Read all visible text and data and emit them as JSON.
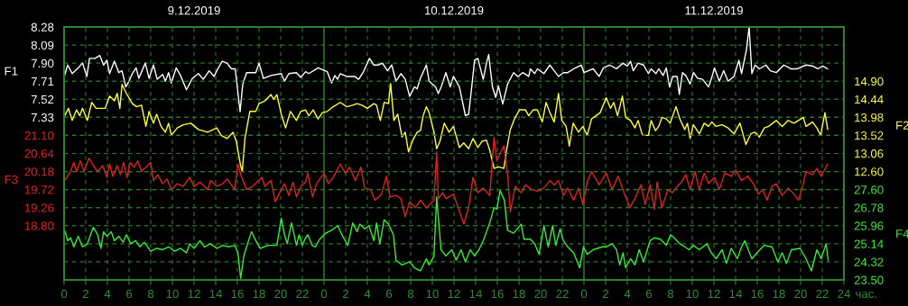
{
  "chart_data": [
    {
      "type": "line",
      "xlabel": "час.",
      "ylabel": "F1",
      "y2label": "F2",
      "grid": true,
      "line_style": "solid",
      "marker": "none",
      "xlim": [
        "2019-12-09T00:00",
        "2019-12-12T00:00"
      ],
      "xticks": [
        {
          "value": "2019-12-09T00:00",
          "label": "0"
        },
        {
          "value": "2019-12-09T02:00",
          "label": "2"
        },
        {
          "value": "2019-12-09T04:00",
          "label": "4"
        },
        {
          "value": "2019-12-09T06:00",
          "label": "6"
        },
        {
          "value": "2019-12-09T08:00",
          "label": "8"
        },
        {
          "value": "2019-12-09T10:00",
          "label": "10"
        },
        {
          "value": "2019-12-09T12:00",
          "label": "12"
        },
        {
          "value": "2019-12-09T14:00",
          "label": "14"
        },
        {
          "value": "2019-12-09T16:00",
          "label": "16"
        },
        {
          "value": "2019-12-09T18:00",
          "label": "18"
        },
        {
          "value": "2019-12-09T20:00",
          "label": "20"
        },
        {
          "value": "2019-12-09T22:00",
          "label": "22"
        },
        {
          "value": "2019-12-10T00:00",
          "label": "0"
        },
        {
          "value": "2019-12-10T02:00",
          "label": "2"
        },
        {
          "value": "2019-12-10T04:00",
          "label": "4"
        },
        {
          "value": "2019-12-10T06:00",
          "label": "6"
        },
        {
          "value": "2019-12-10T08:00",
          "label": "8"
        },
        {
          "value": "2019-12-10T10:00",
          "label": "10"
        },
        {
          "value": "2019-12-10T12:00",
          "label": "12"
        },
        {
          "value": "2019-12-10T14:00",
          "label": "14"
        },
        {
          "value": "2019-12-10T16:00",
          "label": "16"
        },
        {
          "value": "2019-12-10T18:00",
          "label": "18"
        },
        {
          "value": "2019-12-10T20:00",
          "label": "20"
        },
        {
          "value": "2019-12-10T22:00",
          "label": "22"
        },
        {
          "value": "2019-12-11T00:00",
          "label": "0"
        },
        {
          "value": "2019-12-11T02:00",
          "label": "2"
        },
        {
          "value": "2019-12-11T04:00",
          "label": "4"
        },
        {
          "value": "2019-12-11T06:00",
          "label": "6"
        },
        {
          "value": "2019-12-11T08:00",
          "label": "8"
        },
        {
          "value": "2019-12-11T10:00",
          "label": "10"
        },
        {
          "value": "2019-12-11T12:00",
          "label": "12"
        },
        {
          "value": "2019-12-11T14:00",
          "label": "14"
        },
        {
          "value": "2019-12-11T16:00",
          "label": "16"
        },
        {
          "value": "2019-12-11T18:00",
          "label": "18"
        },
        {
          "value": "2019-12-11T20:00",
          "label": "20"
        },
        {
          "value": "2019-12-11T22:00",
          "label": "22"
        },
        {
          "value": "2019-12-12T00:00",
          "label": "24"
        }
      ],
      "x2lim": [
        "2019-12-09T00:00",
        "2019-12-12T00:00"
      ],
      "x2ticks": [
        {
          "value": "2019-12-09T12:00",
          "label": "9.12.2019"
        },
        {
          "value": "2019-12-10T12:00",
          "label": "10.12.2019"
        },
        {
          "value": "2019-12-11T12:00",
          "label": "11.12.2019"
        }
      ],
      "ylim": [
        5.62,
        8.28
      ],
      "yticks": [
        8.28,
        8.09,
        {
          "value": 7.9,
          "label": "7.90"
        },
        7.71,
        7.52,
        7.33
      ],
      "y2lim": [
        9.84,
        16.28
      ],
      "y2ticks": [
        {
          "value": 14.9,
          "label": "14.90"
        },
        14.44,
        13.98,
        13.52,
        13.06,
        {
          "value": 12.6,
          "label": "12.60"
        }
      ],
      "series": [
        {
          "axis": "y",
          "color": "#ffffff",
          "x": [
            "2019-12-09T00:03",
            "2019-12-09T00:20",
            "2019-12-09T00:45",
            "2019-12-09T01:18",
            "2019-12-09T01:42",
            "2019-12-09T02:06",
            "2019-12-09T02:21",
            "2019-12-09T02:51",
            "2019-12-09T03:18",
            "2019-12-09T03:39",
            "2019-12-09T03:57",
            "2019-12-09T04:12",
            "2019-12-09T04:39",
            "2019-12-09T05:03",
            "2019-12-09T05:21",
            "2019-12-09T05:42",
            "2019-12-09T06:00",
            "2019-12-09T06:18",
            "2019-12-09T06:39",
            "2019-12-09T06:54",
            "2019-12-09T07:30",
            "2019-12-09T07:51",
            "2019-12-09T08:15",
            "2019-12-09T08:36",
            "2019-12-09T09:06",
            "2019-12-09T09:21",
            "2019-12-09T09:39",
            "2019-12-09T09:54",
            "2019-12-09T10:21",
            "2019-12-09T10:45",
            "2019-12-09T11:18",
            "2019-12-09T11:51",
            "2019-12-09T12:24",
            "2019-12-09T12:51",
            "2019-12-09T13:24",
            "2019-12-09T13:51",
            "2019-12-09T14:06",
            "2019-12-09T14:36",
            "2019-12-09T15:03",
            "2019-12-09T15:27",
            "2019-12-09T15:48",
            "2019-12-09T16:15",
            "2019-12-09T16:30",
            "2019-12-09T16:51",
            "2019-12-09T17:42",
            "2019-12-09T18:00",
            "2019-12-09T18:24",
            "2019-12-09T19:06",
            "2019-12-09T20:03",
            "2019-12-09T20:21",
            "2019-12-09T20:45",
            "2019-12-09T21:27",
            "2019-12-09T21:51",
            "2019-12-09T22:18",
            "2019-12-09T22:36",
            "2019-12-09T23:27",
            "2019-12-10T00:18",
            "2019-12-10T00:42",
            "2019-12-10T01:00",
            "2019-12-10T01:15",
            "2019-12-10T01:30",
            "2019-12-10T02:06",
            "2019-12-10T02:48",
            "2019-12-10T03:12",
            "2019-12-10T03:36",
            "2019-12-10T04:12",
            "2019-12-10T04:36",
            "2019-12-10T05:00",
            "2019-12-10T05:24",
            "2019-12-10T05:51",
            "2019-12-10T06:15",
            "2019-12-10T06:39",
            "2019-12-10T07:06",
            "2019-12-10T07:30",
            "2019-12-10T07:54",
            "2019-12-10T08:21",
            "2019-12-10T08:36",
            "2019-12-10T08:54",
            "2019-12-10T09:27",
            "2019-12-10T09:42",
            "2019-12-10T10:18",
            "2019-12-10T10:33",
            "2019-12-10T10:51",
            "2019-12-10T11:15",
            "2019-12-10T11:39",
            "2019-12-10T11:57",
            "2019-12-10T12:30",
            "2019-12-10T13:03",
            "2019-12-10T13:21",
            "2019-12-10T13:36",
            "2019-12-10T13:54",
            "2019-12-10T14:12",
            "2019-12-10T14:42",
            "2019-12-10T15:00",
            "2019-12-10T15:12",
            "2019-12-10T15:33",
            "2019-12-10T15:51",
            "2019-12-10T16:06",
            "2019-12-10T16:30",
            "2019-12-10T16:57",
            "2019-12-10T17:30",
            "2019-12-10T17:54",
            "2019-12-10T18:21",
            "2019-12-10T18:54",
            "2019-12-10T19:03",
            "2019-12-10T19:27",
            "2019-12-10T19:42",
            "2019-12-10T20:18",
            "2019-12-10T20:51",
            "2019-12-10T21:15",
            "2019-12-10T21:39",
            "2019-12-10T22:06",
            "2019-12-10T22:30",
            "2019-12-10T23:03",
            "2019-12-10T23:45",
            "2019-12-11T00:00",
            "2019-12-11T00:51",
            "2019-12-11T01:24",
            "2019-12-11T01:48",
            "2019-12-11T02:21",
            "2019-12-11T03:00",
            "2019-12-11T03:36",
            "2019-12-11T04:00",
            "2019-12-11T04:18",
            "2019-12-11T04:33",
            "2019-12-11T05:00",
            "2019-12-11T05:30",
            "2019-12-11T05:57",
            "2019-12-11T06:12",
            "2019-12-11T06:39",
            "2019-12-11T06:54",
            "2019-12-11T07:18",
            "2019-12-11T07:36",
            "2019-12-11T07:54",
            "2019-12-11T08:12",
            "2019-12-11T08:36",
            "2019-12-11T08:48",
            "2019-12-11T09:06",
            "2019-12-11T09:24",
            "2019-12-11T09:48",
            "2019-12-11T10:06",
            "2019-12-11T10:30",
            "2019-12-11T10:57",
            "2019-12-11T11:30",
            "2019-12-11T11:45",
            "2019-12-11T12:03",
            "2019-12-11T12:30",
            "2019-12-11T12:54",
            "2019-12-11T13:18",
            "2019-12-11T13:51",
            "2019-12-11T14:18",
            "2019-12-11T14:33",
            "2019-12-11T15:00",
            "2019-12-11T15:15",
            "2019-12-11T15:30",
            "2019-12-11T15:48",
            "2019-12-11T16:12",
            "2019-12-11T16:48",
            "2019-12-11T17:12",
            "2019-12-11T17:45",
            "2019-12-11T18:27",
            "2019-12-11T19:06",
            "2019-12-11T19:42",
            "2019-12-11T20:30",
            "2019-12-11T21:06",
            "2019-12-11T21:36",
            "2019-12-11T22:03",
            "2019-12-11T22:30"
          ],
          "values": [
            7.77,
            7.88,
            7.79,
            7.85,
            7.9,
            7.76,
            7.95,
            7.95,
            7.98,
            7.88,
            7.93,
            7.79,
            7.92,
            7.8,
            7.82,
            7.65,
            7.71,
            7.79,
            7.85,
            7.74,
            7.9,
            7.74,
            7.88,
            7.73,
            7.78,
            7.71,
            7.8,
            7.69,
            7.85,
            7.77,
            7.62,
            7.74,
            7.79,
            7.73,
            7.82,
            7.76,
            7.82,
            7.92,
            7.9,
            7.84,
            7.84,
            7.39,
            7.68,
            7.8,
            7.8,
            7.9,
            7.74,
            7.77,
            7.79,
            7.71,
            7.79,
            7.8,
            7.75,
            7.81,
            7.79,
            7.85,
            7.81,
            7.69,
            7.77,
            7.73,
            7.79,
            7.76,
            7.76,
            7.73,
            7.8,
            7.95,
            7.88,
            7.88,
            7.9,
            7.82,
            7.88,
            7.71,
            7.79,
            7.73,
            7.55,
            7.65,
            7.63,
            7.74,
            7.88,
            7.71,
            7.65,
            7.58,
            7.66,
            7.8,
            7.65,
            7.76,
            7.65,
            7.35,
            7.36,
            7.61,
            7.93,
            7.95,
            7.73,
            7.9,
            7.99,
            7.65,
            7.54,
            7.66,
            7.47,
            7.68,
            7.8,
            7.76,
            7.8,
            7.76,
            7.84,
            7.79,
            7.84,
            7.79,
            7.88,
            7.82,
            7.76,
            7.8,
            7.8,
            7.84,
            7.88,
            7.8,
            7.84,
            7.76,
            7.85,
            7.88,
            7.84,
            7.9,
            7.87,
            7.92,
            7.82,
            7.9,
            7.88,
            7.79,
            7.84,
            7.79,
            7.84,
            7.77,
            7.85,
            7.65,
            7.76,
            7.76,
            7.57,
            7.8,
            7.77,
            7.68,
            7.8,
            7.74,
            7.73,
            7.65,
            7.73,
            7.85,
            7.71,
            7.82,
            7.71,
            7.76,
            7.93,
            7.79,
            8.04,
            8.28,
            7.79,
            7.88,
            7.84,
            7.88,
            7.82,
            7.8,
            7.88,
            7.84,
            7.84,
            7.88,
            7.87,
            7.84,
            7.87,
            7.84
          ]
        },
        {
          "axis": "y2",
          "color": "#ffff33",
          "x": [
            "2019-12-09T00:03",
            "2019-12-09T00:24",
            "2019-12-09T00:45",
            "2019-12-09T01:09",
            "2019-12-09T01:27",
            "2019-12-09T01:42",
            "2019-12-09T02:09",
            "2019-12-09T02:33",
            "2019-12-09T02:57",
            "2019-12-09T03:48",
            "2019-12-09T04:12",
            "2019-12-09T04:39",
            "2019-12-09T04:54",
            "2019-12-09T05:09",
            "2019-12-09T05:21",
            "2019-12-09T05:45",
            "2019-12-09T06:18",
            "2019-12-09T06:42",
            "2019-12-09T07:09",
            "2019-12-09T07:33",
            "2019-12-09T07:51",
            "2019-12-09T08:15",
            "2019-12-09T08:33",
            "2019-12-09T08:57",
            "2019-12-09T09:21",
            "2019-12-09T09:39",
            "2019-12-09T09:54",
            "2019-12-09T10:27",
            "2019-12-09T11:00",
            "2019-12-09T11:42",
            "2019-12-09T12:24",
            "2019-12-09T13:15",
            "2019-12-09T14:06",
            "2019-12-09T14:30",
            "2019-12-09T15:03",
            "2019-12-09T15:36",
            "2019-12-09T15:54",
            "2019-12-09T16:18",
            "2019-12-09T16:27",
            "2019-12-09T16:42",
            "2019-12-09T17:09",
            "2019-12-09T17:42",
            "2019-12-09T18:00",
            "2019-12-09T18:33",
            "2019-12-09T19:06",
            "2019-12-09T19:21",
            "2019-12-09T19:39",
            "2019-12-09T20:03",
            "2019-12-09T20:27",
            "2019-12-09T20:54",
            "2019-12-09T21:27",
            "2019-12-09T21:51",
            "2019-12-09T22:18",
            "2019-12-09T22:36",
            "2019-12-09T23:00",
            "2019-12-09T23:27",
            "2019-12-09T23:51",
            "2019-12-10T00:18",
            "2019-12-10T00:51",
            "2019-12-10T01:30",
            "2019-12-10T02:06",
            "2019-12-10T02:39",
            "2019-12-10T03:03",
            "2019-12-10T03:30",
            "2019-12-10T04:00",
            "2019-12-10T04:36",
            "2019-12-10T04:51",
            "2019-12-10T05:12",
            "2019-12-10T05:33",
            "2019-12-10T05:57",
            "2019-12-10T06:09",
            "2019-12-10T06:27",
            "2019-12-10T06:48",
            "2019-12-10T07:12",
            "2019-12-10T07:30",
            "2019-12-10T07:48",
            "2019-12-10T08:12",
            "2019-12-10T08:36",
            "2019-12-10T08:54",
            "2019-12-10T09:09",
            "2019-12-10T09:27",
            "2019-12-10T09:42",
            "2019-12-10T10:09",
            "2019-12-10T10:24",
            "2019-12-10T10:42",
            "2019-12-10T11:06",
            "2019-12-10T11:33",
            "2019-12-10T11:57",
            "2019-12-10T12:30",
            "2019-12-10T12:54",
            "2019-12-10T13:21",
            "2019-12-10T13:45",
            "2019-12-10T14:12",
            "2019-12-10T14:36",
            "2019-12-10T15:00",
            "2019-12-10T15:18",
            "2019-12-10T15:42",
            "2019-12-10T16:06",
            "2019-12-10T16:36",
            "2019-12-10T16:48",
            "2019-12-10T17:12",
            "2019-12-10T17:39",
            "2019-12-10T18:03",
            "2019-12-10T18:36",
            "2019-12-10T18:54",
            "2019-12-10T19:18",
            "2019-12-10T19:42",
            "2019-12-10T20:09",
            "2019-12-10T20:30",
            "2019-12-10T20:51",
            "2019-12-10T21:15",
            "2019-12-10T21:39",
            "2019-12-10T21:57",
            "2019-12-10T22:21",
            "2019-12-10T22:39",
            "2019-12-10T23:00",
            "2019-12-10T23:30",
            "2019-12-10T23:54",
            "2019-12-11T00:18",
            "2019-12-11T00:42",
            "2019-12-11T01:06",
            "2019-12-11T01:30",
            "2019-12-11T02:03",
            "2019-12-11T02:27",
            "2019-12-11T02:45",
            "2019-12-11T03:06",
            "2019-12-11T03:33",
            "2019-12-11T03:51",
            "2019-12-11T04:18",
            "2019-12-11T04:42",
            "2019-12-11T05:00",
            "2019-12-11T05:24",
            "2019-12-11T05:57",
            "2019-12-11T06:12",
            "2019-12-11T06:36",
            "2019-12-11T06:54",
            "2019-12-11T07:12",
            "2019-12-11T07:36",
            "2019-12-11T07:57",
            "2019-12-11T08:18",
            "2019-12-11T08:30",
            "2019-12-11T08:51",
            "2019-12-11T09:18",
            "2019-12-11T09:33",
            "2019-12-11T09:48",
            "2019-12-11T10:06",
            "2019-12-11T10:39",
            "2019-12-11T11:06",
            "2019-12-11T11:30",
            "2019-12-11T11:48",
            "2019-12-11T12:12",
            "2019-12-11T12:45",
            "2019-12-11T13:18",
            "2019-12-11T13:51",
            "2019-12-11T14:24",
            "2019-12-11T14:57",
            "2019-12-11T15:24",
            "2019-12-11T15:48",
            "2019-12-11T16:12",
            "2019-12-11T16:39",
            "2019-12-11T17:03",
            "2019-12-11T17:45",
            "2019-12-11T18:18",
            "2019-12-11T18:51",
            "2019-12-11T19:24",
            "2019-12-11T20:15",
            "2019-12-11T20:30",
            "2019-12-11T21:06",
            "2019-12-11T21:30",
            "2019-12-11T21:51",
            "2019-12-11T22:15",
            "2019-12-11T22:30"
          ],
          "values": [
            14.02,
            14.21,
            13.9,
            14.17,
            14.02,
            14.21,
            13.9,
            14.36,
            14.21,
            14.21,
            14.52,
            14.4,
            14.59,
            14.21,
            14.82,
            14.59,
            14.33,
            14.25,
            14.29,
            13.75,
            14.13,
            13.83,
            14.06,
            13.75,
            13.6,
            13.83,
            13.52,
            13.71,
            13.79,
            13.83,
            13.67,
            13.6,
            13.71,
            13.52,
            13.44,
            13.6,
            13.37,
            12.75,
            12.6,
            13.44,
            14.13,
            14.13,
            14.33,
            14.4,
            14.56,
            14.44,
            14.56,
            14.06,
            13.71,
            14.13,
            13.9,
            14.13,
            14.17,
            14.02,
            14.17,
            13.94,
            14.1,
            14.13,
            14.25,
            14.36,
            14.25,
            14.29,
            14.33,
            14.29,
            14.21,
            14.33,
            14.29,
            13.9,
            14.36,
            14.33,
            14.84,
            13.9,
            14.06,
            13.48,
            13.6,
            13.1,
            13.4,
            13.6,
            13.64,
            14.02,
            14.25,
            14.1,
            13.6,
            13.18,
            13.37,
            13.83,
            13.6,
            13.75,
            13.21,
            13.33,
            13.18,
            13.44,
            13.21,
            13.37,
            13.4,
            13.14,
            12.68,
            12.72,
            12.68,
            13.06,
            13.67,
            13.98,
            14.17,
            14.17,
            14.02,
            14.17,
            14.17,
            13.86,
            14.36,
            14.1,
            13.86,
            14.59,
            13.9,
            13.75,
            13.25,
            13.83,
            13.6,
            13.75,
            13.52,
            13.94,
            14.02,
            14.1,
            14.48,
            14.21,
            14.36,
            14.02,
            14.52,
            13.98,
            13.9,
            13.71,
            13.9,
            13.52,
            13.52,
            13.9,
            13.64,
            13.75,
            13.98,
            13.94,
            13.83,
            14.1,
            14.25,
            13.94,
            13.67,
            13.83,
            13.44,
            13.79,
            13.56,
            13.83,
            13.75,
            13.86,
            13.75,
            13.79,
            13.71,
            13.56,
            13.83,
            13.29,
            13.56,
            13.6,
            13.48,
            13.71,
            13.75,
            13.9,
            13.75,
            13.9,
            13.83,
            13.98,
            13.75,
            13.86,
            13.71,
            13.52,
            14.1,
            13.67
          ]
        }
      ]
    },
    {
      "type": "line",
      "ylabel": "F3",
      "y2label": "F4",
      "grid": "y",
      "line_style": "solid",
      "marker": "none",
      "tick_labels": "y",
      "xlim": [
        "2019-12-09T00:00",
        "2019-12-12T00:00"
      ],
      "ylim": [
        17.42,
        23.86
      ],
      "yticks": [
        {
          "value": 21.1,
          "label": "21.10"
        },
        20.64,
        20.18,
        19.72,
        19.26,
        {
          "value": 18.8,
          "label": "18.80"
        }
      ],
      "y2lim": [
        23.5,
        34.98
      ],
      "y2ticks": [
        {
          "value": 27.6,
          "label": "27.60"
        },
        26.78,
        25.96,
        25.14,
        24.32,
        {
          "value": 23.5,
          "label": "23.50"
        }
      ],
      "series": [
        {
          "axis": "y",
          "color": "#e02020",
          "x": [
            "2019-12-09T00:03",
            "2019-12-09T00:36",
            "2019-12-09T00:54",
            "2019-12-09T01:09",
            "2019-12-09T01:30",
            "2019-12-09T01:51",
            "2019-12-09T02:18",
            "2019-12-09T02:42",
            "2019-12-09T03:06",
            "2019-12-09T03:33",
            "2019-12-09T03:57",
            "2019-12-09T04:12",
            "2019-12-09T04:30",
            "2019-12-09T04:54",
            "2019-12-09T05:12",
            "2019-12-09T05:30",
            "2019-12-09T05:48",
            "2019-12-09T06:06",
            "2019-12-09T06:27",
            "2019-12-09T06:48",
            "2019-12-09T07:09",
            "2019-12-09T08:00",
            "2019-12-09T08:15",
            "2019-12-09T08:39",
            "2019-12-09T09:06",
            "2019-12-09T09:30",
            "2019-12-09T09:54",
            "2019-12-09T10:27",
            "2019-12-09T11:00",
            "2019-12-09T11:36",
            "2019-12-09T12:00",
            "2019-12-09T12:33",
            "2019-12-09T13:15",
            "2019-12-09T13:33",
            "2019-12-09T14:06",
            "2019-12-09T14:39",
            "2019-12-09T15:03",
            "2019-12-09T15:45",
            "2019-12-09T16:03",
            "2019-12-09T16:18",
            "2019-12-09T16:51",
            "2019-12-09T17:24",
            "2019-12-09T18:15",
            "2019-12-09T18:33",
            "2019-12-09T19:06",
            "2019-12-09T19:30",
            "2019-12-09T19:54",
            "2019-12-09T20:21",
            "2019-12-09T20:45",
            "2019-12-09T21:09",
            "2019-12-09T21:27",
            "2019-12-09T21:51",
            "2019-12-09T22:18",
            "2019-12-09T22:30",
            "2019-12-09T22:57",
            "2019-12-09T23:18",
            "2019-12-10T00:00",
            "2019-12-10T00:24",
            "2019-12-10T00:51",
            "2019-12-10T01:30",
            "2019-12-10T01:57",
            "2019-12-10T02:21",
            "2019-12-10T02:54",
            "2019-12-10T03:24",
            "2019-12-10T03:45",
            "2019-12-10T04:18",
            "2019-12-10T04:42",
            "2019-12-10T05:18",
            "2019-12-10T05:45",
            "2019-12-10T06:06",
            "2019-12-10T06:39",
            "2019-12-10T07:06",
            "2019-12-10T07:30",
            "2019-12-10T07:54",
            "2019-12-10T08:27",
            "2019-12-10T08:54",
            "2019-12-10T09:27",
            "2019-12-10T10:09",
            "2019-12-10T10:24",
            "2019-12-10T10:33",
            "2019-12-10T10:57",
            "2019-12-10T11:15",
            "2019-12-10T11:57",
            "2019-12-10T12:30",
            "2019-12-10T12:54",
            "2019-12-10T13:21",
            "2019-12-10T13:45",
            "2019-12-10T14:12",
            "2019-12-10T14:42",
            "2019-12-10T15:18",
            "2019-12-10T15:42",
            "2019-12-10T15:57",
            "2019-12-10T16:15",
            "2019-12-10T16:36",
            "2019-12-10T16:57",
            "2019-12-10T17:12",
            "2019-12-10T17:39",
            "2019-12-10T18:12",
            "2019-12-10T18:36",
            "2019-12-10T19:09",
            "2019-12-10T19:42",
            "2019-12-10T20:18",
            "2019-12-10T20:51",
            "2019-12-10T21:15",
            "2019-12-10T21:39",
            "2019-12-10T22:06",
            "2019-12-10T22:30",
            "2019-12-10T23:03",
            "2019-12-10T23:30",
            "2019-12-10T23:54",
            "2019-12-11T00:18",
            "2019-12-11T00:42",
            "2019-12-11T01:24",
            "2019-12-11T02:03",
            "2019-12-11T02:36",
            "2019-12-11T03:09",
            "2019-12-11T03:42",
            "2019-12-11T04:15",
            "2019-12-11T04:42",
            "2019-12-11T05:15",
            "2019-12-11T05:39",
            "2019-12-11T06:06",
            "2019-12-11T06:30",
            "2019-12-11T06:45",
            "2019-12-11T07:12",
            "2019-12-11T07:45",
            "2019-12-11T08:09",
            "2019-12-11T08:36",
            "2019-12-11T09:00",
            "2019-12-11T09:24",
            "2019-12-11T09:48",
            "2019-12-11T10:15",
            "2019-12-11T10:39",
            "2019-12-11T11:06",
            "2019-12-11T11:30",
            "2019-12-11T12:03",
            "2019-12-11T12:30",
            "2019-12-11T13:00",
            "2019-12-11T13:36",
            "2019-12-11T14:00",
            "2019-12-11T14:33",
            "2019-12-11T15:06",
            "2019-12-11T15:39",
            "2019-12-11T16:06",
            "2019-12-11T16:30",
            "2019-12-11T16:54",
            "2019-12-11T17:21",
            "2019-12-11T17:45",
            "2019-12-11T18:18",
            "2019-12-11T18:51",
            "2019-12-11T19:24",
            "2019-12-11T19:48",
            "2019-12-11T20:15",
            "2019-12-11T20:30",
            "2019-12-11T21:06",
            "2019-12-11T21:30",
            "2019-12-11T21:54",
            "2019-12-11T22:30"
          ],
          "values": [
            19.95,
            20.18,
            20.41,
            20.18,
            20.45,
            20.18,
            20.52,
            20.33,
            20.18,
            20.33,
            20.03,
            20.37,
            20.06,
            20.33,
            20.1,
            20.41,
            20.03,
            20.41,
            20.29,
            20.45,
            20.18,
            20.41,
            19.95,
            20.1,
            19.87,
            19.99,
            19.72,
            19.87,
            19.8,
            20.03,
            19.8,
            19.91,
            19.72,
            19.95,
            19.8,
            19.87,
            19.99,
            19.72,
            20.37,
            20.1,
            19.72,
            19.8,
            20.03,
            19.8,
            19.95,
            19.41,
            19.64,
            19.87,
            19.57,
            19.91,
            19.53,
            19.8,
            19.91,
            20.14,
            19.53,
            19.87,
            20.14,
            19.87,
            20.03,
            20.37,
            20.14,
            20.29,
            19.95,
            20.29,
            19.76,
            19.72,
            19.45,
            19.6,
            20.06,
            19.53,
            19.57,
            19.49,
            19.03,
            19.41,
            19.26,
            19.45,
            19.26,
            19.45,
            20.68,
            19.49,
            19.64,
            19.49,
            19.6,
            19.18,
            18.84,
            19.26,
            20.03,
            19.64,
            19.76,
            19.57,
            21.06,
            20.45,
            20.64,
            20.83,
            20.1,
            19.15,
            19.8,
            19.64,
            19.84,
            19.72,
            19.68,
            19.76,
            19.95,
            19.84,
            19.95,
            19.57,
            19.76,
            19.45,
            19.76,
            19.34,
            19.91,
            20.18,
            19.84,
            20.14,
            19.72,
            20.06,
            19.64,
            19.26,
            19.49,
            19.84,
            19.34,
            19.84,
            19.22,
            19.91,
            19.26,
            19.72,
            19.64,
            19.8,
            19.91,
            20.1,
            19.72,
            20.18,
            19.72,
            20.14,
            19.87,
            20.03,
            19.72,
            20.14,
            20.06,
            20.22,
            19.95,
            20.06,
            19.87,
            19.6,
            19.72,
            19.45,
            19.8,
            19.87,
            19.57,
            19.76,
            19.6,
            19.45,
            19.87,
            20.18,
            20.1,
            20.26,
            20.06,
            20.37
          ]
        },
        {
          "axis": "y2",
          "color": "#33ee33",
          "x": [
            "2019-12-09T00:03",
            "2019-12-09T00:20",
            "2019-12-09T00:36",
            "2019-12-09T00:54",
            "2019-12-09T01:18",
            "2019-12-09T01:42",
            "2019-12-09T02:09",
            "2019-12-09T02:42",
            "2019-12-09T03:06",
            "2019-12-09T03:24",
            "2019-12-09T03:39",
            "2019-12-09T03:57",
            "2019-12-09T04:21",
            "2019-12-09T04:39",
            "2019-12-09T05:03",
            "2019-12-09T05:27",
            "2019-12-09T05:45",
            "2019-12-09T06:09",
            "2019-12-09T06:36",
            "2019-12-09T07:00",
            "2019-12-09T07:24",
            "2019-12-09T08:00",
            "2019-12-09T08:33",
            "2019-12-09T09:06",
            "2019-12-09T09:39",
            "2019-12-09T10:12",
            "2019-12-09T10:45",
            "2019-12-09T11:18",
            "2019-12-09T11:36",
            "2019-12-09T12:00",
            "2019-12-09T12:33",
            "2019-12-09T12:57",
            "2019-12-09T13:30",
            "2019-12-09T14:06",
            "2019-12-09T14:39",
            "2019-12-09T15:12",
            "2019-12-09T15:45",
            "2019-12-09T16:03",
            "2019-12-09T16:18",
            "2019-12-09T16:36",
            "2019-12-09T16:51",
            "2019-12-09T17:18",
            "2019-12-09T17:42",
            "2019-12-09T18:06",
            "2019-12-09T18:48",
            "2019-12-09T19:39",
            "2019-12-09T20:03",
            "2019-12-09T20:21",
            "2019-12-09T20:36",
            "2019-12-09T21:00",
            "2019-12-09T21:27",
            "2019-12-09T21:42",
            "2019-12-09T22:00",
            "2019-12-09T22:18",
            "2019-12-09T22:30",
            "2019-12-09T22:54",
            "2019-12-09T23:12",
            "2019-12-09T23:36",
            "2019-12-10T00:09",
            "2019-12-10T00:42",
            "2019-12-10T01:15",
            "2019-12-10T01:48",
            "2019-12-10T02:12",
            "2019-12-10T02:39",
            "2019-12-10T03:03",
            "2019-12-10T03:18",
            "2019-12-10T03:45",
            "2019-12-10T04:09",
            "2019-12-10T04:36",
            "2019-12-10T04:51",
            "2019-12-10T05:09",
            "2019-12-10T05:33",
            "2019-12-10T05:57",
            "2019-12-10T06:24",
            "2019-12-10T06:39",
            "2019-12-10T07:12",
            "2019-12-10T07:54",
            "2019-12-10T08:21",
            "2019-12-10T08:54",
            "2019-12-10T09:27",
            "2019-12-10T09:42",
            "2019-12-10T10:09",
            "2019-12-10T10:24",
            "2019-12-10T10:48",
            "2019-12-10T11:15",
            "2019-12-10T11:48",
            "2019-12-10T12:12",
            "2019-12-10T12:39",
            "2019-12-10T13:03",
            "2019-12-10T13:30",
            "2019-12-10T13:54",
            "2019-12-10T14:18",
            "2019-12-10T14:42",
            "2019-12-10T15:18",
            "2019-12-10T15:42",
            "2019-12-10T15:57",
            "2019-12-10T16:15",
            "2019-12-10T16:39",
            "2019-12-10T16:57",
            "2019-12-10T17:30",
            "2019-12-10T18:12",
            "2019-12-10T18:27",
            "2019-12-10T19:03",
            "2019-12-10T19:27",
            "2019-12-10T19:51",
            "2019-12-10T20:18",
            "2019-12-10T20:42",
            "2019-12-10T21:06",
            "2019-12-10T21:24",
            "2019-12-10T21:48",
            "2019-12-10T22:06",
            "2019-12-10T22:30",
            "2019-12-10T23:03",
            "2019-12-10T23:36",
            "2019-12-10T23:57",
            "2019-12-11T00:18",
            "2019-12-11T00:51",
            "2019-12-11T01:42",
            "2019-12-11T02:03",
            "2019-12-11T02:36",
            "2019-12-11T03:00",
            "2019-12-11T03:18",
            "2019-12-11T03:36",
            "2019-12-11T03:51",
            "2019-12-11T04:18",
            "2019-12-11T04:42",
            "2019-12-11T05:06",
            "2019-12-11T05:30",
            "2019-12-11T06:06",
            "2019-12-11T06:30",
            "2019-12-11T07:03",
            "2019-12-11T07:36",
            "2019-12-11T08:00",
            "2019-12-11T08:27",
            "2019-12-11T08:51",
            "2019-12-11T09:18",
            "2019-12-11T09:42",
            "2019-12-11T10:06",
            "2019-12-11T10:39",
            "2019-12-11T11:21",
            "2019-12-11T11:45",
            "2019-12-11T12:12",
            "2019-12-11T12:45",
            "2019-12-11T13:09",
            "2019-12-11T13:36",
            "2019-12-11T14:09",
            "2019-12-11T14:33",
            "2019-12-11T14:51",
            "2019-12-11T15:30",
            "2019-12-11T16:06",
            "2019-12-11T16:39",
            "2019-12-11T17:21",
            "2019-12-11T17:54",
            "2019-12-11T18:18",
            "2019-12-11T18:42",
            "2019-12-11T19:09",
            "2019-12-11T19:57",
            "2019-12-11T20:30",
            "2019-12-11T21:00",
            "2019-12-11T21:30",
            "2019-12-11T21:54",
            "2019-12-11T22:21",
            "2019-12-11T22:33"
          ],
          "values": [
            25.75,
            25.28,
            25.41,
            25.0,
            25.48,
            25.0,
            25.14,
            25.89,
            25.55,
            24.93,
            25.69,
            25.48,
            25.69,
            25.28,
            25.48,
            25.21,
            25.55,
            25.14,
            25.28,
            25.0,
            25.21,
            24.8,
            24.93,
            24.87,
            25.0,
            24.8,
            24.93,
            24.73,
            25.14,
            24.93,
            25.28,
            25.0,
            25.14,
            24.93,
            25.07,
            25.0,
            25.07,
            24.73,
            23.57,
            24.59,
            25.0,
            25.69,
            25.28,
            24.93,
            25.07,
            25.07,
            26.3,
            25.55,
            25.14,
            26.09,
            25.07,
            25.55,
            25.07,
            25.41,
            25.55,
            25.07,
            25.0,
            25.35,
            25.62,
            25.75,
            25.96,
            25.41,
            25.07,
            26.09,
            25.69,
            26.03,
            25.82,
            25.96,
            25.28,
            26.09,
            25.14,
            26.23,
            26.03,
            25.55,
            24.39,
            24.18,
            24.32,
            24.05,
            23.91,
            24.46,
            24.18,
            24.59,
            27.26,
            24.87,
            24.59,
            24.87,
            24.39,
            24.87,
            24.32,
            24.87,
            24.59,
            24.87,
            25.28,
            26.09,
            26.78,
            26.71,
            27.55,
            27.12,
            25.75,
            25.62,
            26.03,
            25.35,
            25.35,
            25.14,
            24.66,
            25.96,
            25.0,
            25.96,
            25.07,
            25.82,
            25.28,
            25.0,
            24.73,
            24.05,
            25.0,
            24.66,
            24.87,
            25.0,
            25.0,
            25.14,
            24.87,
            24.18,
            24.73,
            24.05,
            24.46,
            24.18,
            24.87,
            24.32,
            25.28,
            25.41,
            25.35,
            25.07,
            25.55,
            25.35,
            25.14,
            25.0,
            24.87,
            25.07,
            24.87,
            25.14,
            24.73,
            24.46,
            24.87,
            24.25,
            24.93,
            24.46,
            25.0,
            25.28,
            24.46,
            24.8,
            25.07,
            25.0,
            24.32,
            24.73,
            24.25,
            24.87,
            24.93,
            24.46,
            23.91,
            24.87,
            24.46,
            25.14,
            24.39
          ]
        }
      ]
    }
  ]
}
